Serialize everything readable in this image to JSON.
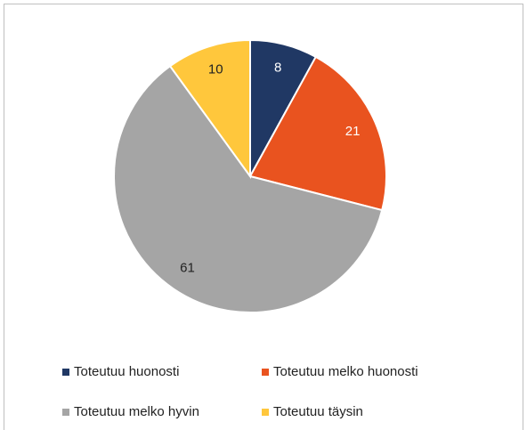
{
  "chart_data": {
    "type": "pie",
    "categories": [
      "Toteutuu huonosti",
      "Toteutuu melko huonosti",
      "Toteutuu melko hyvin",
      "Toteutuu täysin"
    ],
    "values": [
      8,
      21,
      61,
      10
    ],
    "colors": [
      "#203864",
      "#e9531f",
      "#a5a5a5",
      "#ffc73c"
    ],
    "legend": "bottom"
  }
}
